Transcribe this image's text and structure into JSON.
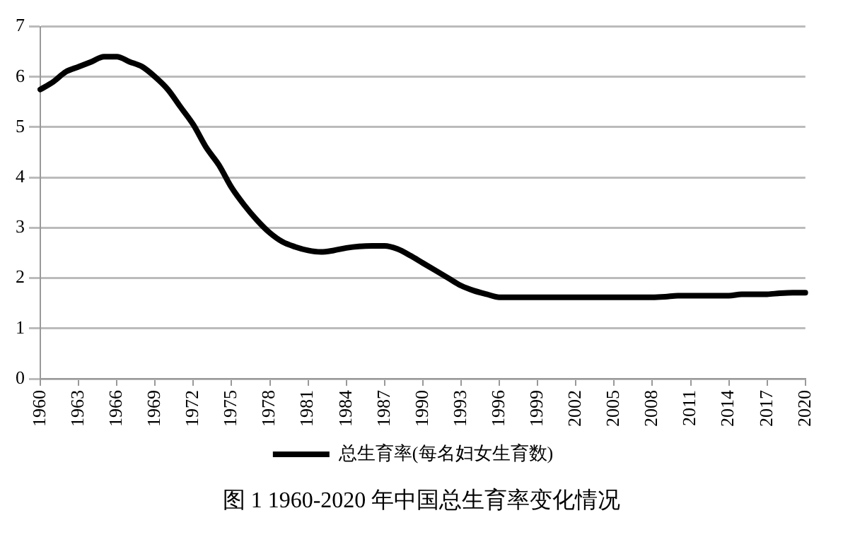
{
  "chart_data": {
    "type": "line",
    "categories": [
      "1960",
      null,
      null,
      "1963",
      null,
      null,
      "1966",
      null,
      null,
      "1969",
      null,
      null,
      "1972",
      null,
      null,
      "1975",
      null,
      null,
      "1978",
      null,
      null,
      "1981",
      null,
      null,
      "1984",
      null,
      null,
      "1987",
      null,
      null,
      "1990",
      null,
      null,
      "1993",
      null,
      null,
      "1996",
      null,
      null,
      "1999",
      null,
      null,
      "2002",
      null,
      null,
      "2005",
      null,
      null,
      "2008",
      null,
      null,
      "2011",
      null,
      null,
      "2014",
      null,
      null,
      "2017",
      null,
      null,
      "2020"
    ],
    "series": [
      {
        "name": "总生育率(每名妇女生育数)",
        "color": "#000000",
        "values": [
          5.75,
          5.9,
          6.1,
          6.2,
          6.3,
          6.4,
          6.4,
          6.3,
          6.2,
          6.0,
          5.75,
          5.4,
          5.05,
          4.6,
          4.25,
          3.8,
          3.45,
          3.15,
          2.9,
          2.72,
          2.62,
          2.55,
          2.52,
          2.55,
          2.6,
          2.63,
          2.64,
          2.64,
          2.58,
          2.45,
          2.3,
          2.15,
          2.0,
          1.85,
          1.75,
          1.68,
          1.62,
          1.62,
          1.62,
          1.62,
          1.62,
          1.62,
          1.62,
          1.62,
          1.62,
          1.62,
          1.62,
          1.62,
          1.62,
          1.63,
          1.65,
          1.65,
          1.65,
          1.65,
          1.65,
          1.68,
          1.68,
          1.68,
          1.7,
          1.71,
          1.71
        ]
      }
    ],
    "ylim": [
      0,
      7
    ],
    "yticks": [
      0,
      1,
      2,
      3,
      4,
      5,
      6,
      7
    ],
    "grid": "y",
    "legend": "bottom",
    "marker": "none",
    "line_style": "solid",
    "annotations": [
      "图 1 1960-2020 年中国总生育率变化情况"
    ]
  }
}
